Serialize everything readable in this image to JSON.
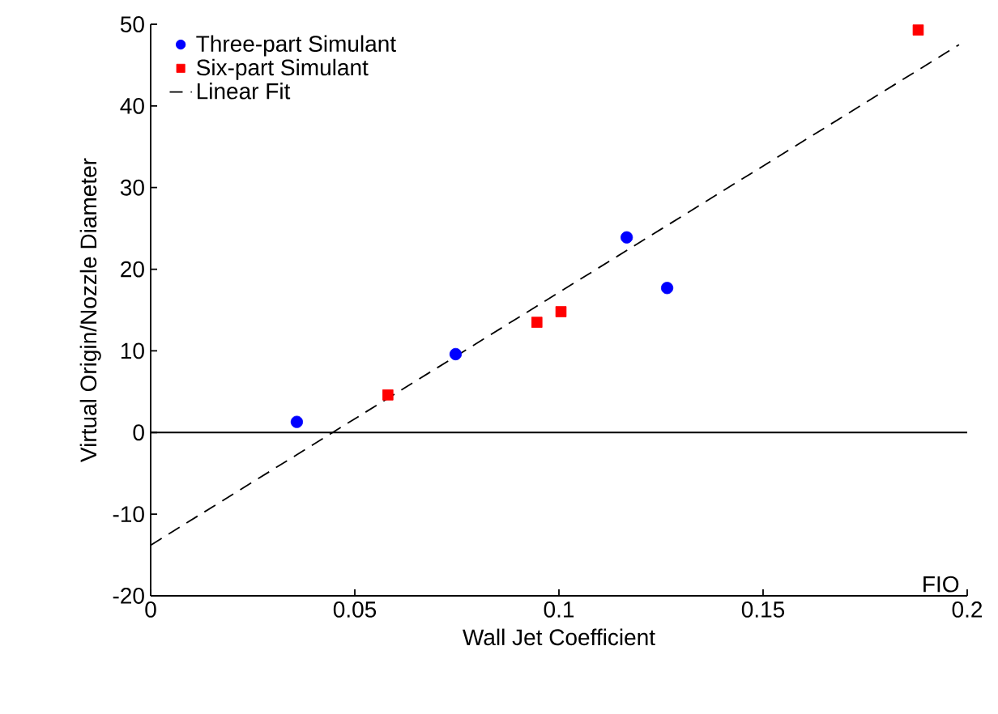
{
  "chart_data": {
    "type": "scatter",
    "xlabel": "Wall Jet Coefficient",
    "ylabel": "Virtual Origin/Nozzle Diameter",
    "xlim": [
      0,
      0.2
    ],
    "ylim": [
      -20,
      50
    ],
    "xticks": [
      0,
      0.05,
      0.1,
      0.15,
      0.2
    ],
    "yticks": [
      -20,
      -10,
      0,
      10,
      20,
      30,
      40,
      50
    ],
    "grid": false,
    "legend": "top left",
    "annotations": [
      "FIO"
    ],
    "ref_lines": [
      {
        "axis": "y",
        "value": 0,
        "color": "#000000",
        "line_style": "solid"
      }
    ],
    "series": [
      {
        "name": "Three-part Simulant",
        "color": "#0000ff",
        "marker": "circle",
        "x": [
          0.0358,
          0.0747,
          0.1166,
          0.1265
        ],
        "values": [
          1.3,
          9.6,
          23.9,
          17.7
        ]
      },
      {
        "name": "Six-part Simulant",
        "color": "#ff0000",
        "marker": "square",
        "x": [
          0.0581,
          0.0946,
          0.1005,
          0.188
        ],
        "values": [
          4.6,
          13.5,
          14.8,
          49.3
        ]
      },
      {
        "name": "Linear Fit",
        "type": "line",
        "color": "#000000",
        "line_style": "dashed",
        "marker": "none",
        "x": [
          0,
          0.198
        ],
        "values": [
          -13.8,
          47.5
        ]
      }
    ]
  }
}
